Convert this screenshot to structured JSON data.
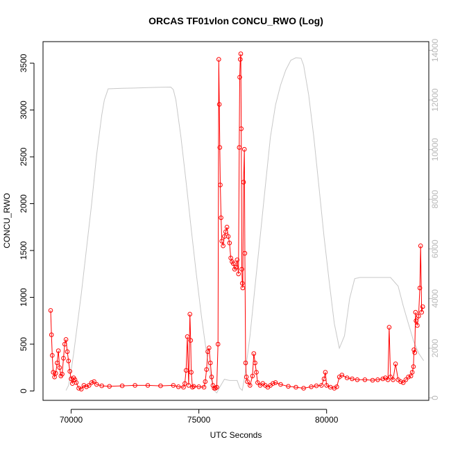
{
  "chart_data": {
    "type": "line",
    "title": "ORCAS TF01vlon CONCU_RWO (Log)",
    "xlabel": "UTC Seconds",
    "ylabel": "CONCU_RWO",
    "y2label": "",
    "xlim": [
      68900,
      84000
    ],
    "ylim": [
      -100,
      3730
    ],
    "y2lim": [
      -100,
      14350
    ],
    "x_ticks": [
      70000,
      75000,
      80000
    ],
    "y_ticks": [
      0,
      500,
      1000,
      1500,
      2000,
      2500,
      3000,
      3500
    ],
    "y2_ticks": [
      0,
      2000,
      4000,
      6000,
      8000,
      10000,
      12000,
      14000
    ],
    "grid": false,
    "colors": {
      "series": "#ff0000",
      "altitude": "#c8c8c8",
      "axes": "#000000",
      "right_axis": "#b8b8b8"
    },
    "series": [
      {
        "values_xy": [
          [
            69200,
            860
          ],
          [
            69230,
            600
          ],
          [
            69260,
            380
          ],
          [
            69300,
            200
          ],
          [
            69350,
            150
          ],
          [
            69400,
            190
          ],
          [
            69450,
            300
          ],
          [
            69500,
            430
          ],
          [
            69550,
            250
          ],
          [
            69600,
            160
          ],
          [
            69650,
            180
          ],
          [
            69700,
            350
          ],
          [
            69750,
            500
          ],
          [
            69800,
            550
          ],
          [
            69850,
            420
          ],
          [
            69900,
            320
          ],
          [
            69950,
            210
          ],
          [
            70000,
            130
          ],
          [
            70050,
            80
          ],
          [
            70100,
            140
          ],
          [
            70150,
            120
          ],
          [
            70200,
            90
          ],
          [
            70300,
            30
          ],
          [
            70400,
            20
          ],
          [
            70500,
            60
          ],
          [
            70600,
            45
          ],
          [
            70700,
            60
          ],
          [
            70800,
            90
          ],
          [
            70900,
            100
          ],
          [
            71000,
            70
          ],
          [
            71200,
            55
          ],
          [
            71500,
            50
          ],
          [
            72000,
            55
          ],
          [
            72500,
            60
          ],
          [
            73000,
            60
          ],
          [
            73500,
            55
          ],
          [
            74000,
            60
          ],
          [
            74200,
            45
          ],
          [
            74400,
            40
          ],
          [
            74450,
            80
          ],
          [
            74500,
            220
          ],
          [
            74550,
            580
          ],
          [
            74600,
            60
          ],
          [
            74650,
            820
          ],
          [
            74680,
            540
          ],
          [
            74700,
            200
          ],
          [
            74750,
            40
          ],
          [
            74800,
            50
          ],
          [
            75000,
            45
          ],
          [
            75200,
            40
          ],
          [
            75250,
            100
          ],
          [
            75300,
            230
          ],
          [
            75350,
            420
          ],
          [
            75400,
            460
          ],
          [
            75450,
            300
          ],
          [
            75500,
            150
          ],
          [
            75550,
            60
          ],
          [
            75600,
            30
          ],
          [
            75650,
            30
          ],
          [
            75700,
            40
          ],
          [
            75750,
            500
          ],
          [
            75780,
            3540
          ],
          [
            75800,
            3060
          ],
          [
            75820,
            2600
          ],
          [
            75840,
            2200
          ],
          [
            75870,
            1850
          ],
          [
            75900,
            1600
          ],
          [
            75950,
            1550
          ],
          [
            76000,
            1650
          ],
          [
            76050,
            1700
          ],
          [
            76100,
            1750
          ],
          [
            76150,
            1650
          ],
          [
            76200,
            1580
          ],
          [
            76250,
            1420
          ],
          [
            76300,
            1380
          ],
          [
            76350,
            1360
          ],
          [
            76400,
            1300
          ],
          [
            76450,
            1320
          ],
          [
            76500,
            1400
          ],
          [
            76550,
            1250
          ],
          [
            76580,
            2600
          ],
          [
            76600,
            3350
          ],
          [
            76620,
            3540
          ],
          [
            76640,
            3600
          ],
          [
            76660,
            2800
          ],
          [
            76680,
            1300
          ],
          [
            76700,
            1150
          ],
          [
            76720,
            1100
          ],
          [
            76750,
            2230
          ],
          [
            76780,
            2580
          ],
          [
            76800,
            1470
          ],
          [
            76830,
            300
          ],
          [
            76860,
            150
          ],
          [
            76900,
            100
          ],
          [
            77000,
            60
          ],
          [
            77100,
            160
          ],
          [
            77150,
            400
          ],
          [
            77200,
            300
          ],
          [
            77250,
            200
          ],
          [
            77300,
            90
          ],
          [
            77400,
            60
          ],
          [
            77500,
            80
          ],
          [
            77600,
            60
          ],
          [
            77700,
            40
          ],
          [
            77800,
            60
          ],
          [
            77900,
            80
          ],
          [
            78000,
            90
          ],
          [
            78200,
            70
          ],
          [
            78500,
            50
          ],
          [
            78800,
            40
          ],
          [
            79100,
            30
          ],
          [
            79400,
            45
          ],
          [
            79600,
            55
          ],
          [
            79800,
            60
          ],
          [
            79900,
            130
          ],
          [
            79950,
            200
          ],
          [
            80000,
            60
          ],
          [
            80150,
            40
          ],
          [
            80300,
            30
          ],
          [
            80400,
            45
          ],
          [
            80500,
            150
          ],
          [
            80600,
            170
          ],
          [
            80800,
            140
          ],
          [
            81000,
            130
          ],
          [
            81200,
            120
          ],
          [
            81500,
            120
          ],
          [
            81800,
            115
          ],
          [
            82000,
            120
          ],
          [
            82200,
            130
          ],
          [
            82300,
            140
          ],
          [
            82400,
            120
          ],
          [
            82450,
            680
          ],
          [
            82500,
            150
          ],
          [
            82600,
            120
          ],
          [
            82700,
            290
          ],
          [
            82800,
            120
          ],
          [
            82900,
            100
          ],
          [
            83000,
            90
          ],
          [
            83100,
            120
          ],
          [
            83200,
            150
          ],
          [
            83300,
            160
          ],
          [
            83350,
            200
          ],
          [
            83400,
            260
          ],
          [
            83420,
            440
          ],
          [
            83450,
            410
          ],
          [
            83480,
            840
          ],
          [
            83500,
            750
          ],
          [
            83550,
            700
          ],
          [
            83600,
            800
          ],
          [
            83650,
            1100
          ],
          [
            83680,
            1550
          ],
          [
            83720,
            840
          ],
          [
            83760,
            900
          ]
        ]
      },
      {
        "axis": "right",
        "values_xy": [
          [
            69800,
            300
          ],
          [
            69900,
            500
          ],
          [
            70000,
            1100
          ],
          [
            70100,
            1800
          ],
          [
            70200,
            2600
          ],
          [
            70400,
            4200
          ],
          [
            70600,
            6000
          ],
          [
            70800,
            7800
          ],
          [
            71000,
            9800
          ],
          [
            71200,
            11400
          ],
          [
            71300,
            12000
          ],
          [
            71400,
            12300
          ],
          [
            71450,
            12450
          ],
          [
            72000,
            12470
          ],
          [
            72500,
            12480
          ],
          [
            73000,
            12500
          ],
          [
            73500,
            12510
          ],
          [
            73900,
            12520
          ],
          [
            74000,
            12420
          ],
          [
            74100,
            12000
          ],
          [
            74300,
            10500
          ],
          [
            74500,
            8700
          ],
          [
            74700,
            6800
          ],
          [
            74900,
            5000
          ],
          [
            75100,
            3300
          ],
          [
            75300,
            1800
          ],
          [
            75500,
            700
          ],
          [
            75600,
            300
          ],
          [
            75700,
            200
          ],
          [
            75800,
            400
          ],
          [
            76000,
            750
          ],
          [
            76200,
            700
          ],
          [
            76400,
            700
          ],
          [
            76500,
            700
          ],
          [
            76600,
            400
          ],
          [
            76700,
            300
          ],
          [
            76800,
            900
          ],
          [
            77000,
            2500
          ],
          [
            77200,
            4500
          ],
          [
            77400,
            6500
          ],
          [
            77600,
            8500
          ],
          [
            77800,
            10500
          ],
          [
            78000,
            11800
          ],
          [
            78200,
            12600
          ],
          [
            78400,
            13200
          ],
          [
            78600,
            13600
          ],
          [
            78800,
            13700
          ],
          [
            79000,
            13680
          ],
          [
            79100,
            13400
          ],
          [
            79300,
            12200
          ],
          [
            79500,
            10500
          ],
          [
            79700,
            8500
          ],
          [
            79900,
            6500
          ],
          [
            80100,
            4700
          ],
          [
            80300,
            3000
          ],
          [
            80500,
            2000
          ],
          [
            80700,
            2500
          ],
          [
            80900,
            4000
          ],
          [
            81100,
            4800
          ],
          [
            81300,
            4850
          ],
          [
            81500,
            4850
          ],
          [
            82000,
            4850
          ],
          [
            82500,
            4850
          ],
          [
            82800,
            4500
          ],
          [
            83000,
            3700
          ],
          [
            83200,
            3000
          ],
          [
            83400,
            2300
          ],
          [
            83600,
            1800
          ],
          [
            83800,
            1500
          ]
        ]
      }
    ]
  }
}
